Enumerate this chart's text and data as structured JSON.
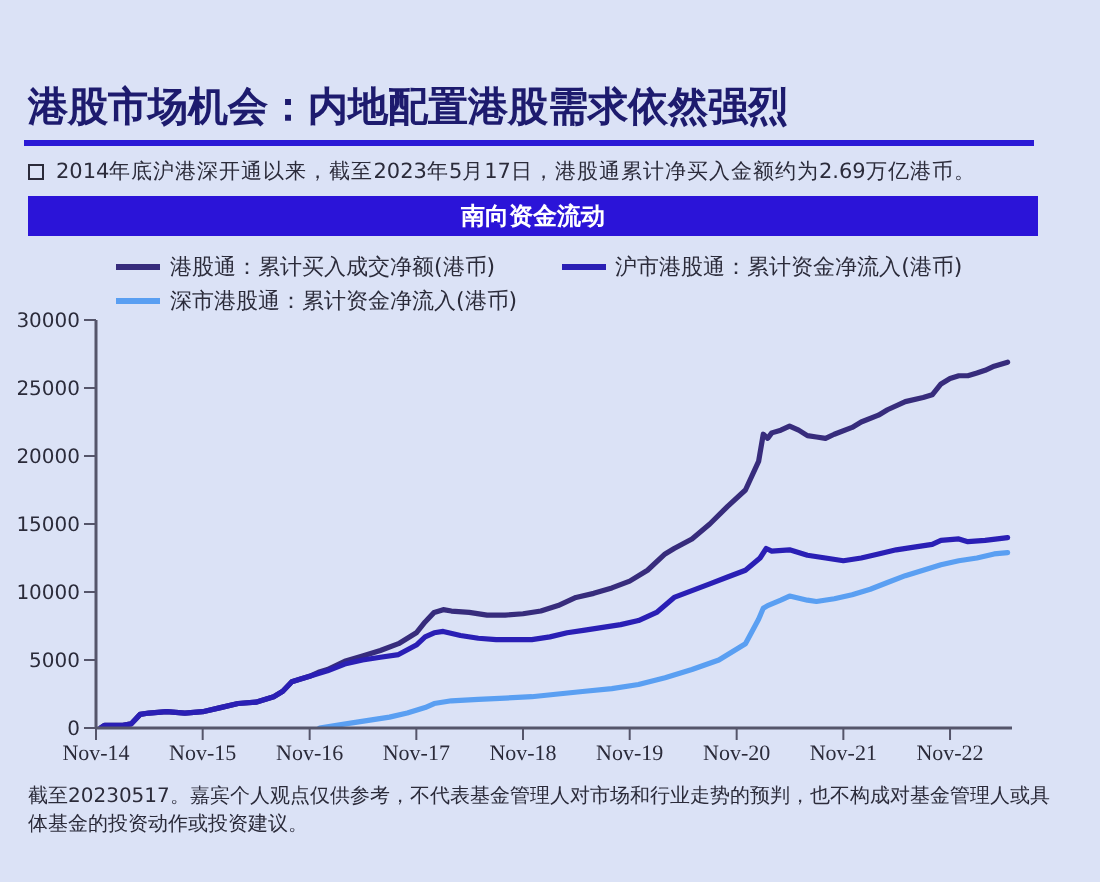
{
  "chart_data": {
    "type": "line",
    "title": "港股市场机会：内地配置港股需求依然强烈",
    "subtitle": "2014年底沪港深开通以来，截至2023年5月17日，港股通累计净买入金额约为2.69万亿港币。",
    "annotations": [
      "南向资金流动",
      "截至20230517。嘉宾个人观点仅供参考，不代表基金管理人对市场和行业走势的预判，也不构成对基金管理人或具体基金的投资动作或投资建议。"
    ],
    "xlim": [
      "2014-11",
      "2023-06"
    ],
    "xticks": [
      {
        "value": "2014-11",
        "label": "Nov-14"
      },
      {
        "value": "2015-11",
        "label": "Nov-15"
      },
      {
        "value": "2016-11",
        "label": "Nov-16"
      },
      {
        "value": "2017-11",
        "label": "Nov-17"
      },
      {
        "value": "2018-11",
        "label": "Nov-18"
      },
      {
        "value": "2019-11",
        "label": "Nov-19"
      },
      {
        "value": "2020-11",
        "label": "Nov-20"
      },
      {
        "value": "2021-11",
        "label": "Nov-21"
      },
      {
        "value": "2022-11",
        "label": "Nov-22"
      }
    ],
    "ylim": [
      0,
      30000
    ],
    "yticks": [
      0,
      5000,
      10000,
      15000,
      20000,
      25000,
      30000
    ],
    "legend": "top left",
    "marker": "none",
    "line_style": "solid",
    "series": [
      {
        "name": "港股通：累计买入成交净额(港币)",
        "color": "#372c7c",
        "x": [
          "2014-11-17",
          "2014-12",
          "2015-02",
          "2015-03",
          "2015-04",
          "2015-05",
          "2015-07",
          "2015-09",
          "2015-11",
          "2016-01",
          "2016-03",
          "2016-05",
          "2016-07",
          "2016-08",
          "2016-09",
          "2016-10",
          "2016-11",
          "2016-12",
          "2017-01",
          "2017-03",
          "2017-05",
          "2017-07",
          "2017-09",
          "2017-11",
          "2017-12",
          "2018-01",
          "2018-02",
          "2018-03",
          "2018-05",
          "2018-07",
          "2018-09",
          "2018-11",
          "2019-01",
          "2019-03",
          "2019-05",
          "2019-07",
          "2019-09",
          "2019-11",
          "2020-01",
          "2020-03",
          "2020-04",
          "2020-06",
          "2020-08",
          "2020-10",
          "2020-12",
          "2021-01-15",
          "2021-01-31",
          "2021-02-15",
          "2021-03",
          "2021-04",
          "2021-05",
          "2021-06",
          "2021-07",
          "2021-08",
          "2021-09",
          "2021-10",
          "2021-12",
          "2022-01",
          "2022-03",
          "2022-04",
          "2022-06",
          "2022-08",
          "2022-09",
          "2022-10",
          "2022-11",
          "2022-12",
          "2023-01",
          "2023-02",
          "2023-03",
          "2023-04",
          "2023-05-17"
        ],
        "values": [
          0,
          200,
          200,
          300,
          1000,
          1100,
          1200,
          1100,
          1200,
          1500,
          1800,
          1900,
          2300,
          2700,
          3400,
          3600,
          3800,
          4100,
          4300,
          4900,
          5300,
          5700,
          6200,
          7000,
          7800,
          8500,
          8700,
          8600,
          8500,
          8300,
          8300,
          8400,
          8600,
          9000,
          9600,
          9900,
          10300,
          10800,
          11600,
          12800,
          13200,
          13900,
          15000,
          16300,
          17500,
          19600,
          21600,
          21300,
          21700,
          21900,
          22200,
          21900,
          21500,
          21400,
          21300,
          21600,
          22100,
          22500,
          23000,
          23400,
          24000,
          24300,
          24500,
          25300,
          25700,
          25900,
          25900,
          26100,
          26300,
          26600,
          26900
        ]
      },
      {
        "name": "沪市港股通：累计资金净流入(港币)",
        "color": "#2a1fb5",
        "x": [
          "2014-11-17",
          "2014-12",
          "2015-02",
          "2015-03",
          "2015-04",
          "2015-05",
          "2015-07",
          "2015-09",
          "2015-11",
          "2016-01",
          "2016-03",
          "2016-05",
          "2016-07",
          "2016-08",
          "2016-09",
          "2016-10",
          "2016-11",
          "2016-12",
          "2017-01",
          "2017-03",
          "2017-05",
          "2017-07",
          "2017-09",
          "2017-11",
          "2017-12",
          "2018-01",
          "2018-02",
          "2018-04",
          "2018-06",
          "2018-08",
          "2018-10",
          "2018-12",
          "2019-02",
          "2019-04",
          "2019-06",
          "2019-08",
          "2019-10",
          "2019-12",
          "2020-02",
          "2020-04",
          "2020-06",
          "2020-08",
          "2020-10",
          "2020-12",
          "2021-01-20",
          "2021-02-10",
          "2021-03",
          "2021-05",
          "2021-07",
          "2021-09",
          "2021-11",
          "2022-01",
          "2022-03",
          "2022-05",
          "2022-07",
          "2022-09",
          "2022-10",
          "2022-12",
          "2023-01",
          "2023-03",
          "2023-05-17"
        ],
        "values": [
          0,
          200,
          200,
          300,
          1000,
          1100,
          1200,
          1100,
          1200,
          1500,
          1800,
          1900,
          2300,
          2700,
          3400,
          3600,
          3800,
          4000,
          4200,
          4700,
          5000,
          5200,
          5400,
          6100,
          6700,
          7000,
          7100,
          6800,
          6600,
          6500,
          6500,
          6500,
          6700,
          7000,
          7200,
          7400,
          7600,
          7900,
          8500,
          9600,
          10100,
          10600,
          11100,
          11600,
          12500,
          13200,
          13000,
          13100,
          12700,
          12500,
          12300,
          12500,
          12800,
          13100,
          13300,
          13500,
          13800,
          13900,
          13700,
          13800,
          14000
        ]
      },
      {
        "name": "深市港股通：累计资金净流入(港币)",
        "color": "#5a9ff2",
        "x": [
          "2016-12-05",
          "2017-02",
          "2017-04",
          "2017-06",
          "2017-08",
          "2017-10",
          "2017-12",
          "2018-01",
          "2018-03",
          "2018-06",
          "2018-09",
          "2018-12",
          "2019-03",
          "2019-06",
          "2019-09",
          "2019-12",
          "2020-03",
          "2020-06",
          "2020-09",
          "2020-12",
          "2021-01-15",
          "2021-01-31",
          "2021-02-15",
          "2021-04",
          "2021-05",
          "2021-07",
          "2021-08",
          "2021-10",
          "2021-12",
          "2022-02",
          "2022-04",
          "2022-06",
          "2022-08",
          "2022-10",
          "2022-12",
          "2023-02",
          "2023-04",
          "2023-05-17"
        ],
        "values": [
          0,
          200,
          400,
          600,
          800,
          1100,
          1500,
          1800,
          2000,
          2100,
          2200,
          2300,
          2500,
          2700,
          2900,
          3200,
          3700,
          4300,
          5000,
          6200,
          8000,
          8800,
          9000,
          9400,
          9700,
          9400,
          9300,
          9500,
          9800,
          10200,
          10700,
          11200,
          11600,
          12000,
          12300,
          12500,
          12800,
          12900
        ]
      }
    ]
  }
}
